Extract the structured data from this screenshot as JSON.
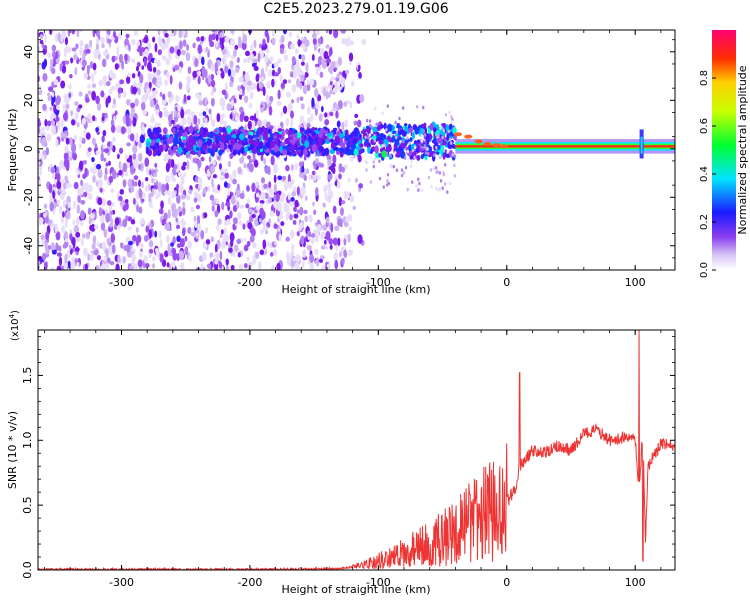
{
  "title": "C2E5.2023.279.01.19.G06",
  "chart_data": [
    {
      "type": "heatmap",
      "xlabel": "Height of straight line (km)",
      "ylabel": "Frequency (Hz)",
      "xlim": [
        -365,
        131
      ],
      "ylim": [
        -50,
        49
      ],
      "xticks": [
        -300,
        -200,
        -100,
        0,
        100
      ],
      "yticks": [
        -40,
        -20,
        0,
        20,
        40
      ],
      "colorbar": {
        "label": "Normalized spectral amplitude",
        "range": [
          0.0,
          1.0
        ],
        "ticks": [
          "0.0",
          "0.2",
          "0.4",
          "0.6",
          "0.8"
        ]
      },
      "features": {
        "noise_region_x": [
          -365,
          -110
        ],
        "dominant_line_x": [
          -40,
          131
        ],
        "dominant_line_frequency_hz": 1,
        "spike_x": 105
      }
    },
    {
      "type": "line",
      "xlabel": "Height of straight line (km)",
      "ylabel": "SNR (10 * v/v)",
      "scale_label": "(x10",
      "scale_exp": "4",
      "scale_close": ")",
      "xlim": [
        -365,
        131
      ],
      "ylim": [
        0,
        1.85
      ],
      "xticks": [
        -300,
        -200,
        -100,
        0,
        100
      ],
      "yticks": [
        "0.0",
        "0.5",
        "1.0",
        "1.5"
      ],
      "color": "#ee3333",
      "series": [
        {
          "name": "",
          "x": [
            -365,
            -300,
            -200,
            -130,
            -115,
            -100,
            -90,
            -80,
            -70,
            -60,
            -50,
            -40,
            -30,
            -20,
            -10,
            0,
            8,
            10,
            20,
            30,
            40,
            50,
            60,
            70,
            80,
            90,
            100,
            103,
            106,
            108,
            110,
            120,
            131
          ],
          "y": [
            0.005,
            0.005,
            0.005,
            0.01,
            0.03,
            0.07,
            0.1,
            0.13,
            0.17,
            0.2,
            0.24,
            0.3,
            0.35,
            0.42,
            0.45,
            0.52,
            0.65,
            0.8,
            0.92,
            0.9,
            0.96,
            0.92,
            1.05,
            1.08,
            1.0,
            1.02,
            1.0,
            0.6,
            1.1,
            0.2,
            0.8,
            0.97,
            0.95
          ],
          "spikes": [
            {
              "x": 10,
              "y": 1.52
            },
            {
              "x": 103,
              "y": 1.85
            },
            {
              "x": 106,
              "y": 0.07
            }
          ]
        }
      ]
    }
  ]
}
